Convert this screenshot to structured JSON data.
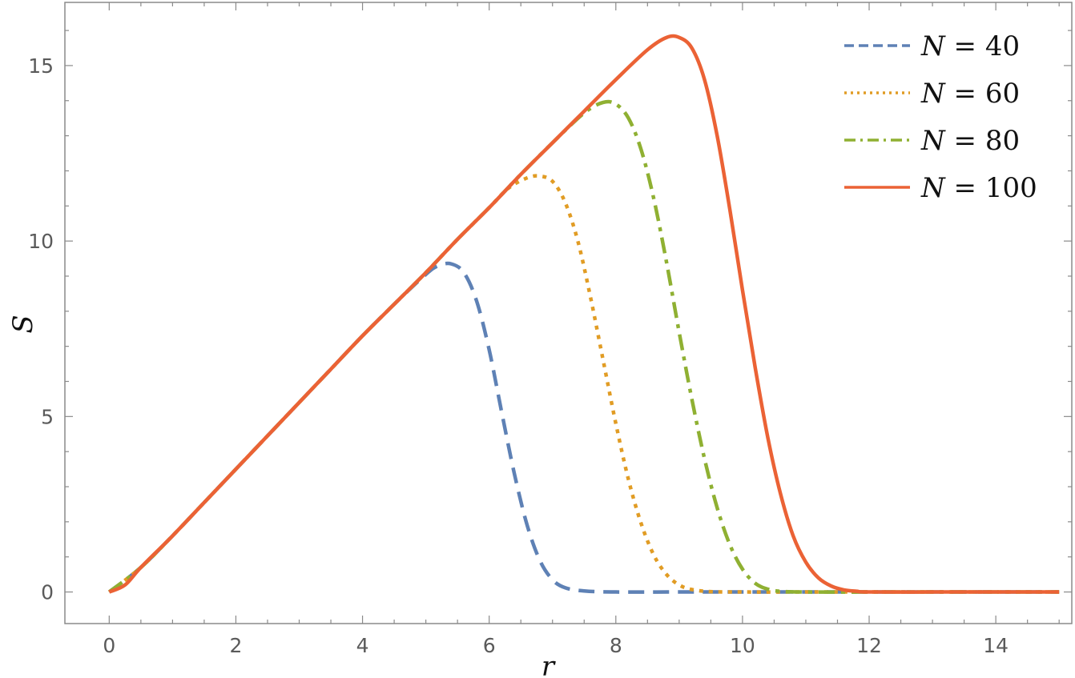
{
  "chart_data": {
    "type": "line",
    "title": "",
    "xlabel": "r",
    "ylabel": "S",
    "xlim": [
      -0.7,
      15.2
    ],
    "ylim": [
      -0.9,
      16.8
    ],
    "xticks": [
      0,
      2,
      4,
      6,
      8,
      10,
      12,
      14
    ],
    "yticks": [
      0,
      5,
      10,
      15
    ],
    "legend_position": "top-right",
    "grid": false,
    "series": [
      {
        "name": "N = 40",
        "label_var": "N",
        "label_op": " = ",
        "label_num": "40",
        "color": "#5e81b5",
        "style": "dashed",
        "x": [
          0,
          0.5,
          1,
          1.5,
          2,
          2.5,
          3,
          3.5,
          4,
          4.5,
          5,
          5.2,
          5.4,
          5.6,
          5.8,
          6.0,
          6.2,
          6.4,
          6.6,
          6.8,
          7.0,
          7.2,
          7.5,
          8,
          9,
          10,
          11,
          12,
          13,
          14,
          15
        ],
        "y": [
          0,
          0.7,
          1.6,
          2.55,
          3.5,
          4.45,
          5.4,
          6.35,
          7.3,
          8.2,
          9.05,
          9.3,
          9.35,
          9.1,
          8.3,
          6.9,
          5.1,
          3.35,
          1.9,
          0.9,
          0.35,
          0.12,
          0.03,
          0,
          0,
          0,
          0,
          0,
          0,
          0,
          0
        ]
      },
      {
        "name": "N = 60",
        "label_var": "N",
        "label_op": " = ",
        "label_num": "60",
        "color": "#e19c24",
        "style": "dotted",
        "x": [
          0,
          0.5,
          1,
          1.5,
          2,
          2.5,
          3,
          3.5,
          4,
          4.5,
          5,
          5.5,
          6,
          6.3,
          6.6,
          6.8,
          7.0,
          7.2,
          7.4,
          7.6,
          7.8,
          8.0,
          8.2,
          8.4,
          8.6,
          8.8,
          9.0,
          9.2,
          9.5,
          10,
          11,
          12,
          13,
          14,
          15
        ],
        "y": [
          0,
          0.7,
          1.6,
          2.55,
          3.5,
          4.45,
          5.4,
          6.35,
          7.3,
          8.2,
          9.1,
          10.05,
          10.95,
          11.5,
          11.8,
          11.85,
          11.7,
          11.1,
          10.0,
          8.4,
          6.6,
          4.8,
          3.2,
          1.95,
          1.05,
          0.5,
          0.2,
          0.07,
          0.01,
          0,
          0,
          0,
          0,
          0,
          0
        ]
      },
      {
        "name": "N = 80",
        "label_var": "N",
        "label_op": " = ",
        "label_num": "80",
        "color": "#8fb032",
        "style": "dashdot",
        "x": [
          0,
          0.5,
          1,
          1.5,
          2,
          2.5,
          3,
          3.5,
          4,
          4.5,
          5,
          5.5,
          6,
          6.5,
          7,
          7.5,
          7.8,
          8.0,
          8.2,
          8.4,
          8.6,
          8.8,
          9.0,
          9.2,
          9.4,
          9.6,
          9.8,
          10.0,
          10.2,
          10.4,
          10.6,
          11,
          12,
          13,
          14,
          15
        ],
        "y": [
          0,
          0.7,
          1.6,
          2.55,
          3.5,
          4.45,
          5.4,
          6.35,
          7.3,
          8.2,
          9.1,
          10.05,
          10.95,
          11.9,
          12.8,
          13.65,
          13.95,
          13.9,
          13.5,
          12.6,
          11.2,
          9.4,
          7.4,
          5.5,
          3.8,
          2.4,
          1.35,
          0.65,
          0.25,
          0.08,
          0.02,
          0,
          0,
          0,
          0,
          0
        ]
      },
      {
        "name": "N = 100",
        "label_var": "N",
        "label_op": " = ",
        "label_num": "100",
        "color": "#eb6235",
        "style": "solid",
        "x": [
          0,
          0.25,
          0.5,
          1,
          1.5,
          2,
          2.5,
          3,
          3.5,
          4,
          4.5,
          5,
          5.5,
          6,
          6.5,
          7,
          7.5,
          8,
          8.5,
          8.8,
          9.0,
          9.2,
          9.4,
          9.6,
          9.8,
          10.0,
          10.2,
          10.4,
          10.6,
          10.8,
          11.0,
          11.2,
          11.4,
          11.6,
          11.8,
          12,
          13,
          14,
          15
        ],
        "y": [
          0,
          0.2,
          0.7,
          1.6,
          2.55,
          3.5,
          4.45,
          5.4,
          6.35,
          7.3,
          8.2,
          9.1,
          10.05,
          10.95,
          11.9,
          12.8,
          13.7,
          14.6,
          15.45,
          15.8,
          15.8,
          15.5,
          14.6,
          13.0,
          10.9,
          8.6,
          6.4,
          4.4,
          2.8,
          1.6,
          0.85,
          0.4,
          0.17,
          0.06,
          0.02,
          0,
          0,
          0,
          0
        ]
      }
    ]
  }
}
